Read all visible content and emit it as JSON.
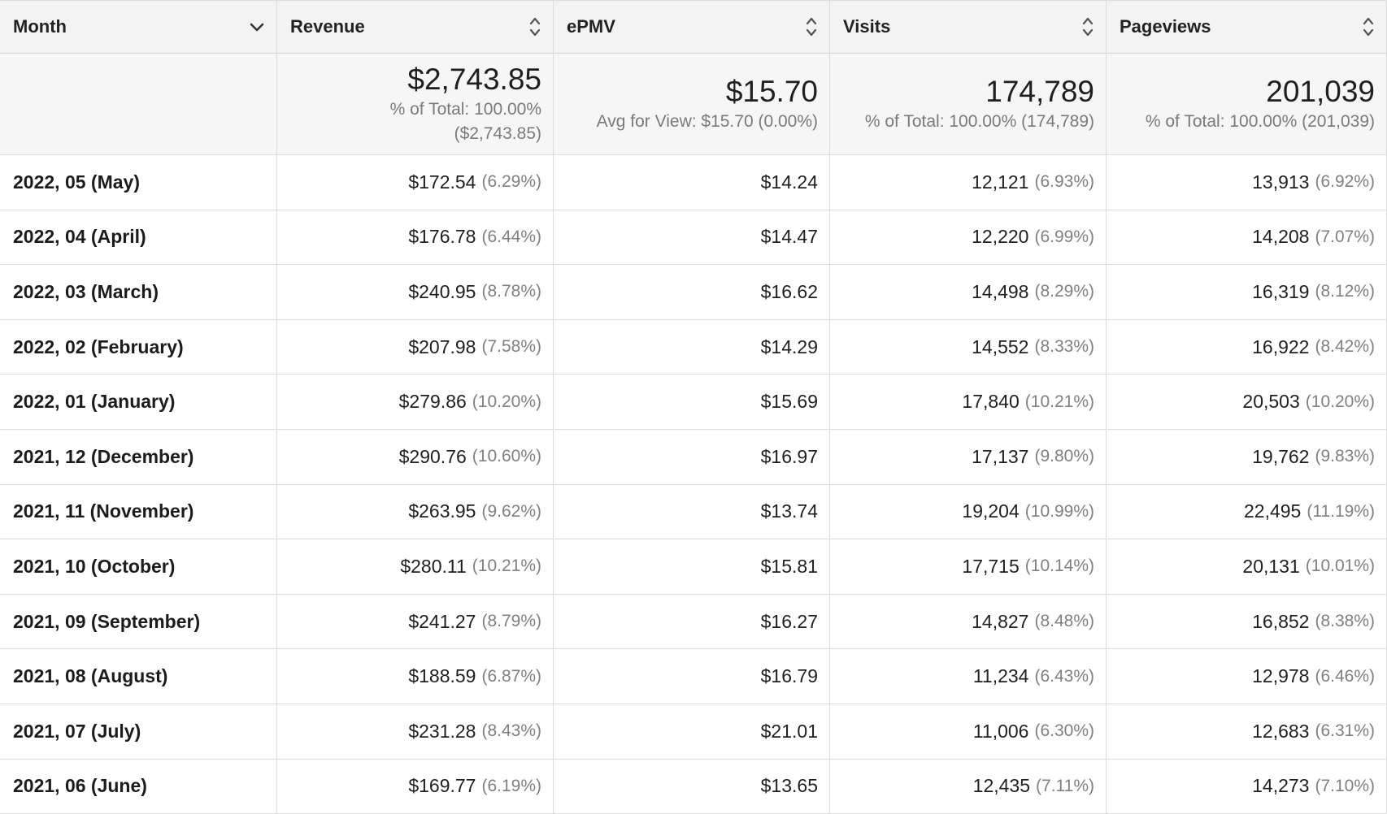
{
  "columns": [
    {
      "label": "Month",
      "sort_icon": "chevron-down-icon"
    },
    {
      "label": "Revenue",
      "sort_icon": "sort-arrows-icon"
    },
    {
      "label": "ePMV",
      "sort_icon": "sort-arrows-icon"
    },
    {
      "label": "Visits",
      "sort_icon": "sort-arrows-icon"
    },
    {
      "label": "Pageviews",
      "sort_icon": "sort-arrows-icon"
    }
  ],
  "totals": {
    "revenue": {
      "value": "$2,743.85",
      "line1": "% of Total: 100.00%",
      "line2": "($2,743.85)"
    },
    "epmv": {
      "value": "$15.70",
      "line1": "Avg for View: $15.70 (0.00%)"
    },
    "visits": {
      "value": "174,789",
      "line1": "% of Total: 100.00% (174,789)"
    },
    "pageviews": {
      "value": "201,039",
      "line1": "% of Total: 100.00% (201,039)"
    }
  },
  "rows": [
    {
      "month": "2022, 05 (May)",
      "revenue": "$172.54",
      "revenue_pct": "(6.29%)",
      "epmv": "$14.24",
      "visits": "12,121",
      "visits_pct": "(6.93%)",
      "pageviews": "13,913",
      "pageviews_pct": "(6.92%)"
    },
    {
      "month": "2022, 04 (April)",
      "revenue": "$176.78",
      "revenue_pct": "(6.44%)",
      "epmv": "$14.47",
      "visits": "12,220",
      "visits_pct": "(6.99%)",
      "pageviews": "14,208",
      "pageviews_pct": "(7.07%)"
    },
    {
      "month": "2022, 03 (March)",
      "revenue": "$240.95",
      "revenue_pct": "(8.78%)",
      "epmv": "$16.62",
      "visits": "14,498",
      "visits_pct": "(8.29%)",
      "pageviews": "16,319",
      "pageviews_pct": "(8.12%)"
    },
    {
      "month": "2022, 02 (February)",
      "revenue": "$207.98",
      "revenue_pct": "(7.58%)",
      "epmv": "$14.29",
      "visits": "14,552",
      "visits_pct": "(8.33%)",
      "pageviews": "16,922",
      "pageviews_pct": "(8.42%)"
    },
    {
      "month": "2022, 01 (January)",
      "revenue": "$279.86",
      "revenue_pct": "(10.20%)",
      "epmv": "$15.69",
      "visits": "17,840",
      "visits_pct": "(10.21%)",
      "pageviews": "20,503",
      "pageviews_pct": "(10.20%)"
    },
    {
      "month": "2021, 12 (December)",
      "revenue": "$290.76",
      "revenue_pct": "(10.60%)",
      "epmv": "$16.97",
      "visits": "17,137",
      "visits_pct": "(9.80%)",
      "pageviews": "19,762",
      "pageviews_pct": "(9.83%)"
    },
    {
      "month": "2021, 11 (November)",
      "revenue": "$263.95",
      "revenue_pct": "(9.62%)",
      "epmv": "$13.74",
      "visits": "19,204",
      "visits_pct": "(10.99%)",
      "pageviews": "22,495",
      "pageviews_pct": "(11.19%)"
    },
    {
      "month": "2021, 10 (October)",
      "revenue": "$280.11",
      "revenue_pct": "(10.21%)",
      "epmv": "$15.81",
      "visits": "17,715",
      "visits_pct": "(10.14%)",
      "pageviews": "20,131",
      "pageviews_pct": "(10.01%)"
    },
    {
      "month": "2021, 09 (September)",
      "revenue": "$241.27",
      "revenue_pct": "(8.79%)",
      "epmv": "$16.27",
      "visits": "14,827",
      "visits_pct": "(8.48%)",
      "pageviews": "16,852",
      "pageviews_pct": "(8.38%)"
    },
    {
      "month": "2021, 08 (August)",
      "revenue": "$188.59",
      "revenue_pct": "(6.87%)",
      "epmv": "$16.79",
      "visits": "11,234",
      "visits_pct": "(6.43%)",
      "pageviews": "12,978",
      "pageviews_pct": "(6.46%)"
    },
    {
      "month": "2021, 07 (July)",
      "revenue": "$231.28",
      "revenue_pct": "(8.43%)",
      "epmv": "$21.01",
      "visits": "11,006",
      "visits_pct": "(6.30%)",
      "pageviews": "12,683",
      "pageviews_pct": "(6.31%)"
    },
    {
      "month": "2021, 06 (June)",
      "revenue": "$169.77",
      "revenue_pct": "(6.19%)",
      "epmv": "$13.65",
      "visits": "12,435",
      "visits_pct": "(7.11%)",
      "pageviews": "14,273",
      "pageviews_pct": "(7.10%)"
    }
  ]
}
